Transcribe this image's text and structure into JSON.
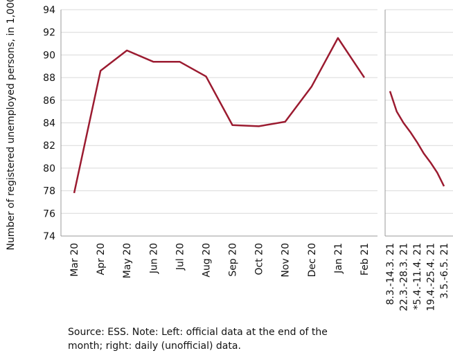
{
  "chart_data": [
    {
      "type": "line",
      "ylabel": "Number of registered unemployed persons, in 1,000",
      "categories": [
        "Mar 20",
        "Apr 20",
        "May 20",
        "Jun 20",
        "Jul 20",
        "Aug 20",
        "Sep 20",
        "Oct 20",
        "Nov 20",
        "Dec 20",
        "Jan 21",
        "Feb 21"
      ],
      "series": [
        {
          "color": "#9b1b30",
          "values": [
            77.8,
            88.6,
            90.4,
            89.4,
            89.4,
            88.1,
            83.8,
            83.7,
            84.1,
            87.2,
            91.5,
            88.0
          ]
        }
      ],
      "ylim": [
        74,
        94
      ],
      "yticks": [
        74,
        76,
        78,
        80,
        82,
        84,
        86,
        88,
        90,
        92,
        94
      ],
      "grid": true
    },
    {
      "type": "line",
      "categories": [
        "8.3.-14.3. 21",
        null,
        "22.3.-28.3. 21",
        null,
        "*5.4.-11.4. 21",
        null,
        "19.4.-25.4. 21",
        null,
        "3.5.-6.5. 21"
      ],
      "series": [
        {
          "color": "#9b1b30",
          "values": [
            86.8,
            85.0,
            84.0,
            83.2,
            82.3,
            81.3,
            80.5,
            79.6,
            78.4
          ]
        }
      ],
      "ylim": [
        74,
        94
      ],
      "yticks": [
        74,
        76,
        78,
        80,
        82,
        84,
        86,
        88,
        90,
        92,
        94
      ],
      "grid": true
    }
  ],
  "note": [
    "Source: ESS. Note: Left: official data at the end of the",
    "month; right: daily (unofficial) data."
  ]
}
